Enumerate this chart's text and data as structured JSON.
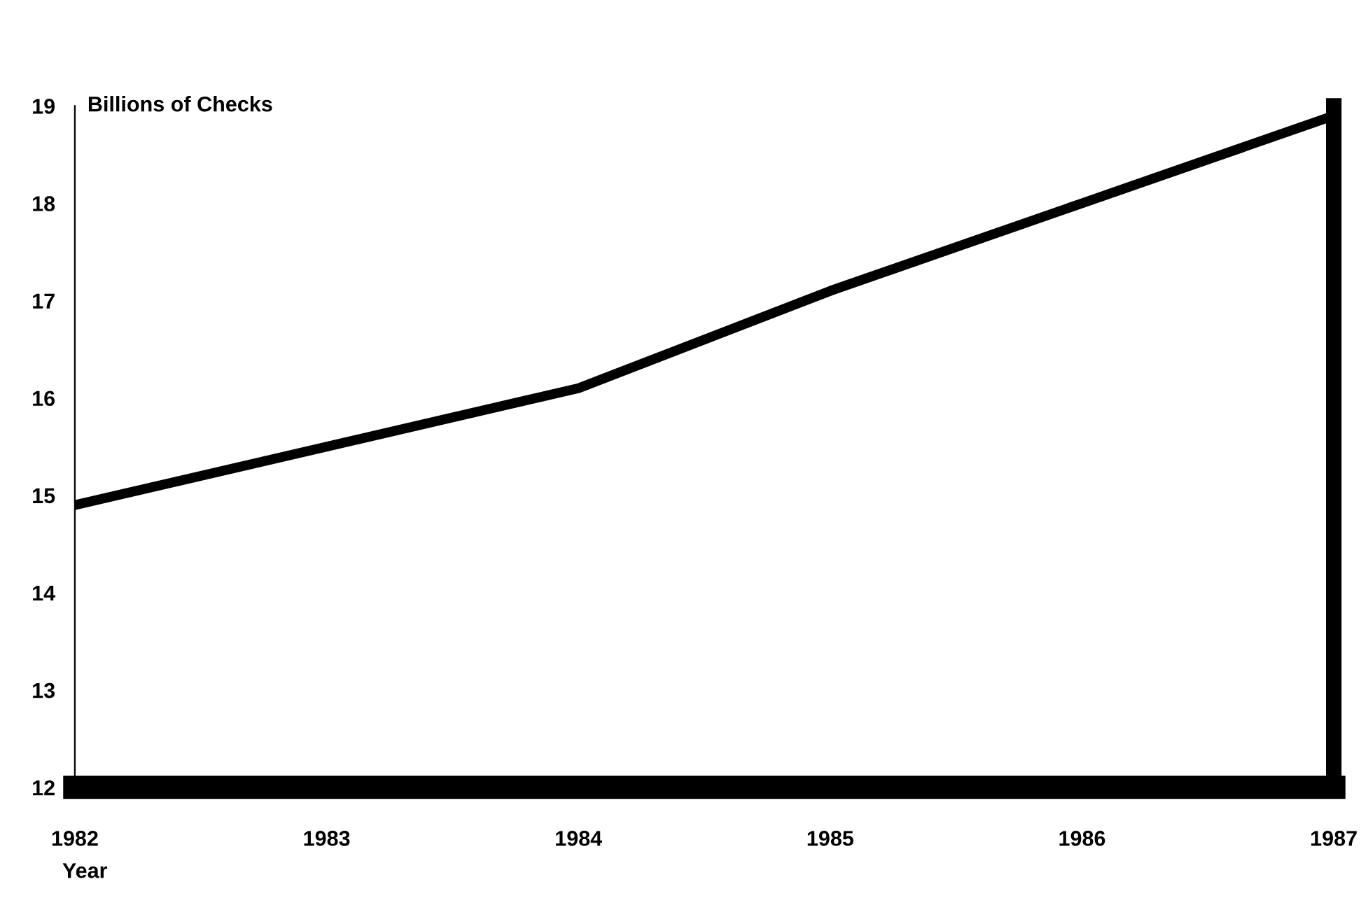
{
  "chart_data": {
    "type": "line",
    "ylabel": "Billions of Checks",
    "xlabel": "Year",
    "x": [
      1982,
      1983,
      1984,
      1985,
      1986,
      1987
    ],
    "series": [
      {
        "color": "#000000",
        "values": [
          14.9,
          15.5,
          16.1,
          17.1,
          18.0,
          18.9
        ]
      }
    ],
    "xlim": [
      1982,
      1987
    ],
    "xticks": [
      1982,
      1983,
      1984,
      1985,
      1986,
      1987
    ],
    "ylim": [
      12,
      19
    ],
    "yticks": [
      12,
      13,
      14,
      15,
      16,
      17,
      18,
      19
    ],
    "grid": false,
    "legend": false,
    "marker": "none",
    "line_style": "solid"
  }
}
